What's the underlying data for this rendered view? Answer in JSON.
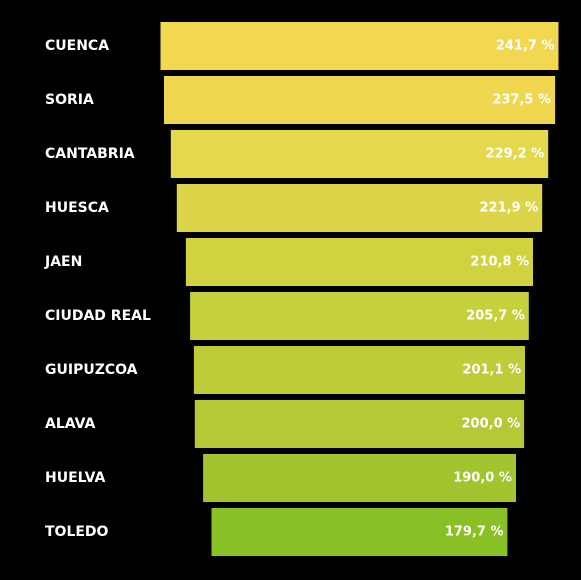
{
  "chart_data": {
    "type": "bar",
    "orientation": "horizontal",
    "alignment": "center",
    "categories": [
      "CUENCA",
      "SORIA",
      "CANTABRIA",
      "HUESCA",
      "JAEN",
      "CIUDAD REAL",
      "GUIPUZCOA",
      "ALAVA",
      "HUELVA",
      "TOLEDO"
    ],
    "values": [
      241.7,
      237.5,
      229.2,
      221.9,
      210.8,
      205.7,
      201.1,
      200.0,
      190.0,
      179.7
    ],
    "value_labels": [
      "241,7 %",
      "237,5 %",
      "229,2 %",
      "221,9 %",
      "210,8 %",
      "205,7 %",
      "201,1 %",
      "200,0 %",
      "190,0 %",
      "179,7 %"
    ],
    "colors": [
      "#f2d851",
      "#efd850",
      "#e6d84d",
      "#ddd549",
      "#d0d240",
      "#c6cf3c",
      "#bdcc38",
      "#b5c835",
      "#a2c42e",
      "#88c026"
    ],
    "grid": false,
    "legend": "none"
  }
}
